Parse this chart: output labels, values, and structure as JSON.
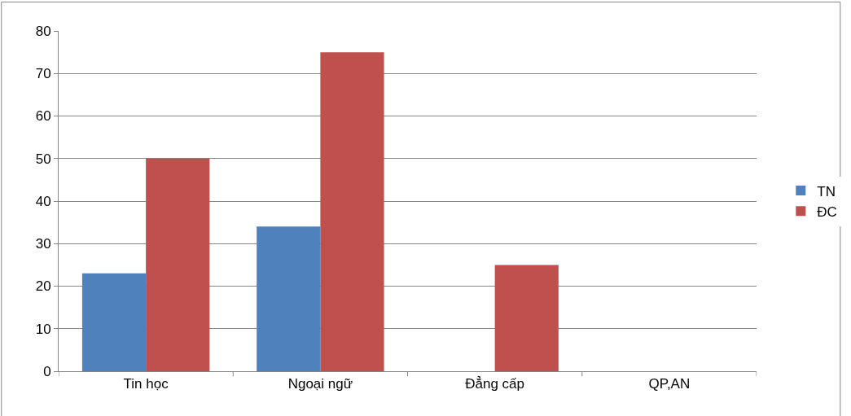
{
  "chart_data": {
    "type": "bar",
    "categories": [
      "Tin học",
      "Ngoại ngữ",
      "Đẳng cấp",
      "QP,AN"
    ],
    "series": [
      {
        "name": "TN",
        "color": "#4f81bd",
        "values": [
          23,
          34,
          0,
          0
        ]
      },
      {
        "name": "ĐC",
        "color": "#c0504d",
        "values": [
          50,
          75,
          25,
          0
        ]
      }
    ],
    "ylim": [
      0,
      80
    ],
    "yticks": [
      0,
      10,
      20,
      30,
      40,
      50,
      60,
      70,
      80
    ],
    "grid": "y",
    "legend": "right"
  }
}
